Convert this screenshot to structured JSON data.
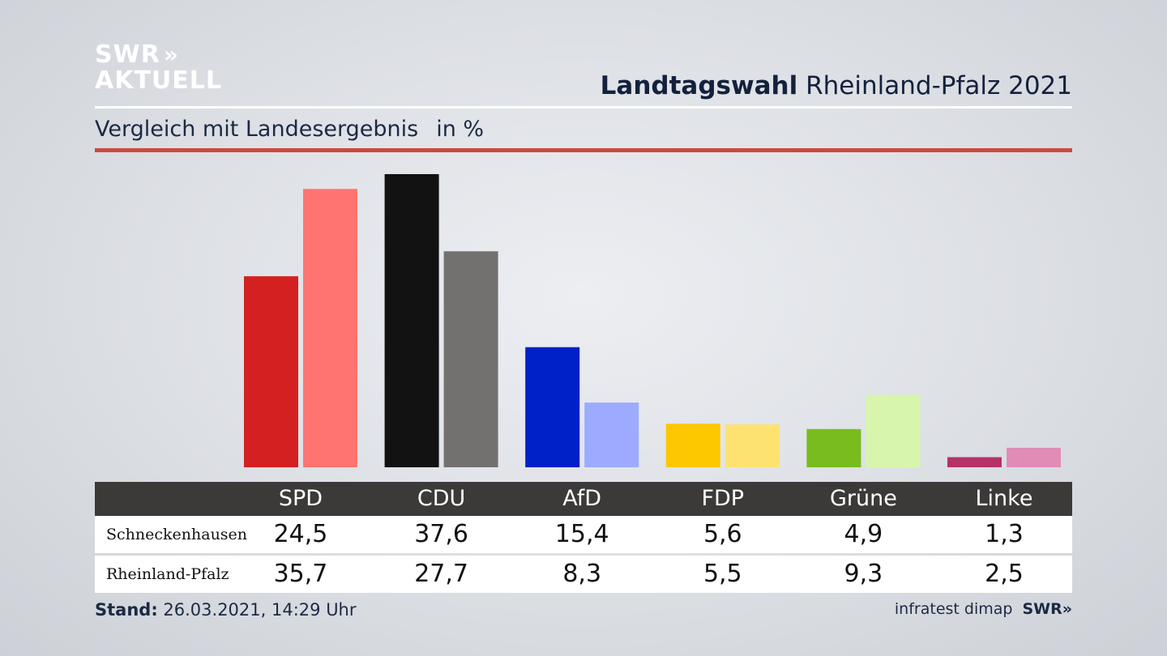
{
  "logo": {
    "line1": "SWR",
    "line2": "AKTUELL",
    "chevrons": "»"
  },
  "header": {
    "title_bold": "Landtagswahl",
    "title_rest": "Rheinland-Pfalz 2021"
  },
  "subtitle": {
    "text": "Vergleich mit Landesergebnis",
    "unit": "in %"
  },
  "footer": {
    "stand_label": "Stand:",
    "stand_value": "26.03.2021, 14:29 Uhr",
    "source": "infratest dimap",
    "source_logo": "SWR»"
  },
  "colors": {
    "accent_rule": "#cc4a3c",
    "table_header": "#3c3a38"
  },
  "chart_data": {
    "type": "bar",
    "categories": [
      "SPD",
      "CDU",
      "AfD",
      "FDP",
      "Grüne",
      "Linke"
    ],
    "series": [
      {
        "name": "Schneckenhausen",
        "values": [
          24.5,
          37.6,
          15.4,
          5.6,
          4.9,
          1.3
        ],
        "colors": [
          "#d42020",
          "#121212",
          "#0020c8",
          "#fdc800",
          "#78bc1e",
          "#b5326a"
        ]
      },
      {
        "name": "Rheinland-Pfalz",
        "values": [
          35.7,
          27.7,
          8.3,
          5.5,
          9.3,
          2.5
        ],
        "colors": [
          "#ff7470",
          "#737170",
          "#9cabff",
          "#fde272",
          "#d7f6ac",
          "#e08cb6"
        ]
      }
    ],
    "ylim": [
      0,
      37.6
    ],
    "grid": false,
    "legend": "table-below"
  }
}
